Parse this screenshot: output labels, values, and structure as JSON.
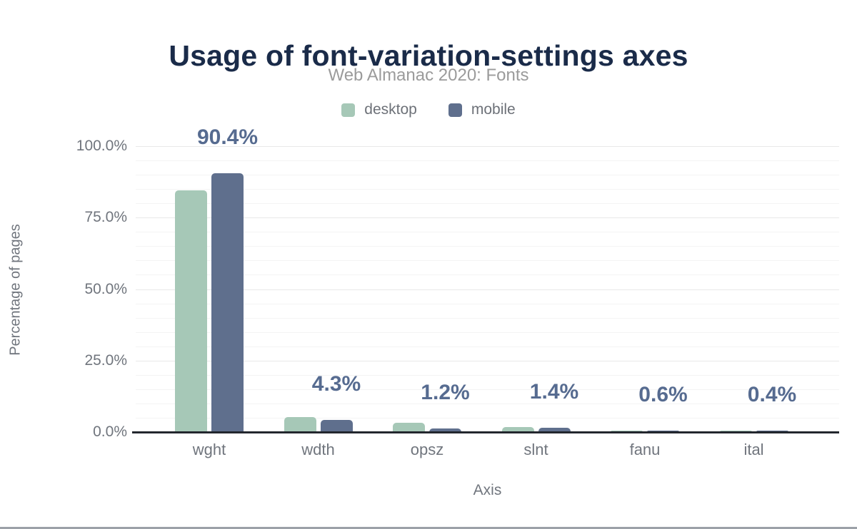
{
  "chart_data": {
    "type": "bar",
    "title": "Usage of font-variation-settings axes",
    "subtitle": "Web Almanac 2020: Fonts",
    "xlabel": "Axis",
    "ylabel": "Percentage of pages",
    "categories": [
      "wght",
      "wdth",
      "opsz",
      "slnt",
      "fanu",
      "ital"
    ],
    "series": [
      {
        "name": "desktop",
        "color": "#a6c8b7",
        "values": [
          84.5,
          5.2,
          3.2,
          1.7,
          0.4,
          0.6
        ]
      },
      {
        "name": "mobile",
        "color": "#5f6f8d",
        "values": [
          90.4,
          4.3,
          1.2,
          1.4,
          0.6,
          0.4
        ]
      }
    ],
    "bar_labels": [
      "90.4%",
      "4.3%",
      "1.2%",
      "1.4%",
      "0.6%",
      "0.4%"
    ],
    "ylim": [
      0,
      100
    ],
    "yticks": {
      "labels": [
        "0.0%",
        "25.0%",
        "50.0%",
        "75.0%",
        "100.0%"
      ],
      "values": [
        0,
        25,
        50,
        75,
        100
      ]
    },
    "grid": {
      "minor_step": 5,
      "major_step": 25,
      "legend_position": "top-center"
    }
  },
  "colors": {
    "title": "#1a2b49",
    "subtitle": "#9b9b9b",
    "legend_text": "#6d7178",
    "axis_text": "#70757d",
    "bar_label": "#566b90",
    "grid_minor": "#f4f4f4",
    "grid_major": "#e9e9e9",
    "axis_line": "#23272e",
    "bottom_border": "#9ca1a8"
  }
}
